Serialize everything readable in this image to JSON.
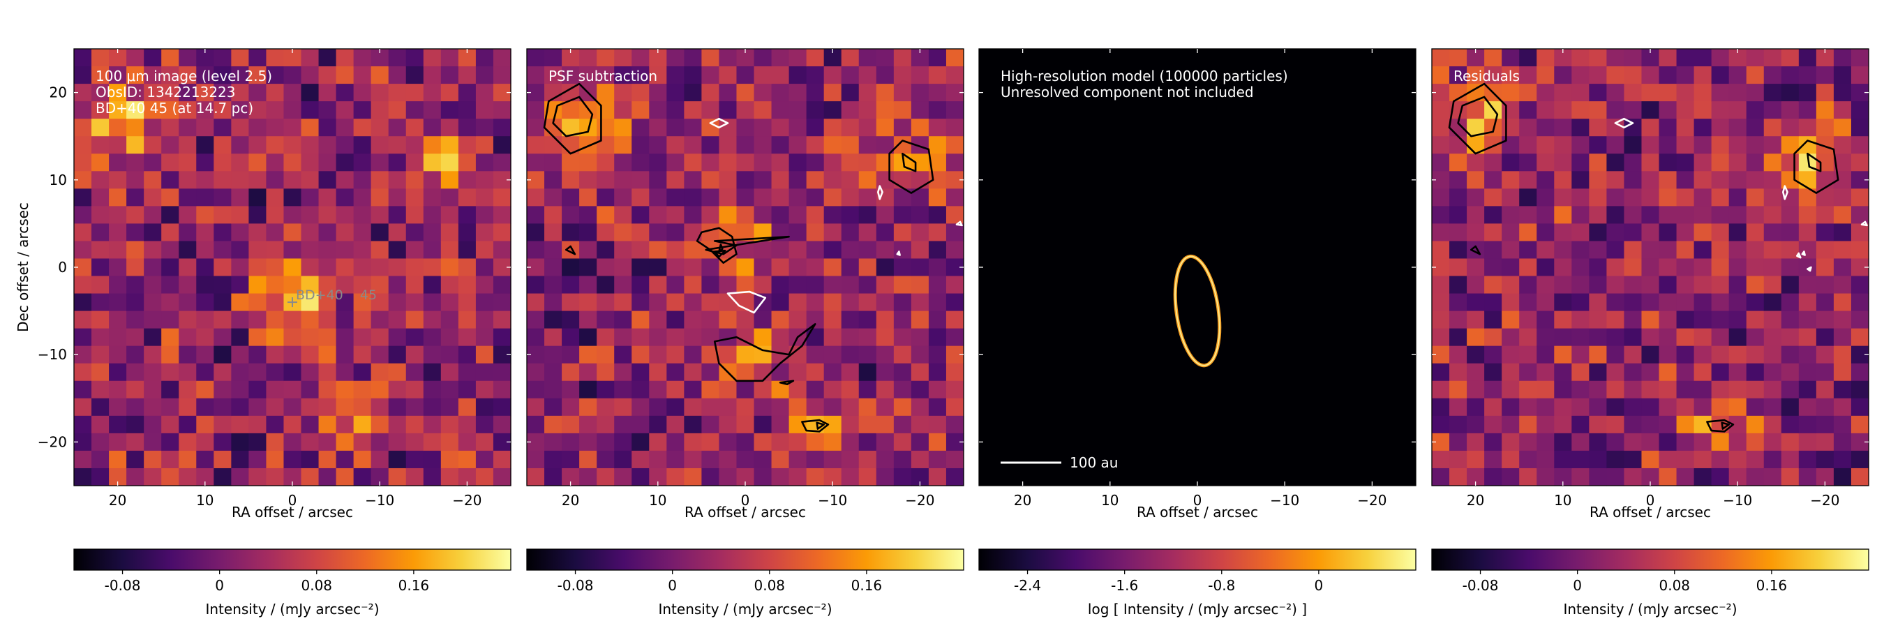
{
  "colors": {
    "colormap": [
      "#000004",
      "#1b0c41",
      "#4a0c6b",
      "#781c6d",
      "#a52c60",
      "#cf4446",
      "#ed6925",
      "#fb9b06",
      "#f7d13d",
      "#fcffa4"
    ],
    "positive_contour": "#000000",
    "negative_contour": "#ffffff",
    "annotation_text": "#ffffff",
    "marker": "#8a8a8a"
  },
  "chart_data": [
    {
      "type": "heatmap",
      "panel": "observation",
      "annotations": [
        "100 μm image (level 2.5)",
        "ObsID: 1342213223",
        "BD+40 45 (at 14.7 pc)"
      ],
      "marker_label": "BD+40    45",
      "marker_position": [
        0,
        -4
      ],
      "xlabel": "RA offset / arcsec",
      "ylabel": "Dec offset / arcsec",
      "xlim": [
        25,
        -25
      ],
      "ylim": [
        -25,
        25
      ],
      "xticks": [
        "20",
        "10",
        "0",
        "−10",
        "−20"
      ],
      "yticks": [
        "20",
        "10",
        "0",
        "−10",
        "−20"
      ],
      "grid": false,
      "pixel_size_arcsec": 2,
      "background_level": 0.02,
      "sources": [
        {
          "x": 0,
          "y": -3,
          "peak": 0.2
        },
        {
          "x": 19,
          "y": 17,
          "peak": 0.14
        },
        {
          "x": -18,
          "y": 12,
          "peak": 0.12
        },
        {
          "x": -7,
          "y": -17,
          "peak": 0.08
        }
      ],
      "colorbar": {
        "label": "Intensity / (mJy arcsec⁻²)",
        "ticks": [
          "-0.08",
          "0",
          "0.08",
          "0.16"
        ],
        "range": [
          -0.12,
          0.24
        ]
      }
    },
    {
      "type": "heatmap",
      "panel": "psf-subtraction",
      "annotations": [
        "PSF subtraction"
      ],
      "xlabel": "RA offset / arcsec",
      "xlim": [
        25,
        -25
      ],
      "ylim": [
        -25,
        25
      ],
      "xticks": [
        "20",
        "10",
        "0",
        "−10",
        "−20"
      ],
      "grid": false,
      "pixel_size_arcsec": 2,
      "background_level": 0.02,
      "sources": [
        {
          "x": 19,
          "y": 17,
          "peak": 0.15
        },
        {
          "x": -18,
          "y": 12,
          "peak": 0.12
        },
        {
          "x": 0,
          "y": 3,
          "peak": 0.09
        },
        {
          "x": 0,
          "y": -10,
          "peak": 0.09
        },
        {
          "x": -8,
          "y": -18,
          "peak": 0.09
        }
      ],
      "contours": [
        {
          "sign": "positive",
          "points": [
            [
              22.5,
              19
            ],
            [
              19,
              21
            ],
            [
              16.5,
              18.5
            ],
            [
              16.5,
              14.5
            ],
            [
              20,
              13
            ],
            [
              23,
              16
            ]
          ]
        },
        {
          "sign": "positive",
          "points": [
            [
              21.5,
              18.5
            ],
            [
              19,
              19.5
            ],
            [
              17.5,
              17.5
            ],
            [
              18,
              15.5
            ],
            [
              20.5,
              15
            ],
            [
              22,
              16.5
            ]
          ]
        },
        {
          "sign": "positive",
          "points": [
            [
              -16.5,
              13
            ],
            [
              -18,
              14.5
            ],
            [
              -21,
              13.5
            ],
            [
              -21.5,
              10
            ],
            [
              -19,
              8.5
            ],
            [
              -16.5,
              10
            ]
          ]
        },
        {
          "sign": "positive",
          "points": [
            [
              -18,
              13
            ],
            [
              -19.5,
              12
            ],
            [
              -19.5,
              11
            ],
            [
              -18.2,
              11.5
            ]
          ]
        },
        {
          "sign": "positive",
          "points": [
            [
              1.5,
              3.5
            ],
            [
              3,
              4.5
            ],
            [
              5,
              4
            ],
            [
              5.5,
              3
            ],
            [
              4,
              2
            ],
            [
              2.5,
              0.5
            ],
            [
              1,
              1.5
            ]
          ]
        },
        {
          "sign": "positive",
          "points": [
            [
              3.5,
              3
            ],
            [
              -5,
              3.5
            ],
            [
              4.5,
              2
            ],
            [
              2.5,
              1.5
            ],
            [
              1,
              2.5
            ]
          ]
        },
        {
          "sign": "positive",
          "points": [
            [
              3,
              1.8
            ],
            [
              2.8,
              2.6
            ],
            [
              2.6,
              2.1
            ]
          ]
        },
        {
          "sign": "positive",
          "points": [
            [
              3.5,
              1.8
            ],
            [
              3,
              1.2
            ],
            [
              2.3,
              1.9
            ]
          ]
        },
        {
          "sign": "positive",
          "points": [
            [
              3.5,
              -8.5
            ],
            [
              1,
              -8
            ],
            [
              -2,
              -9.5
            ],
            [
              -5,
              -10
            ],
            [
              -6,
              -8
            ],
            [
              -8,
              -6.5
            ],
            [
              -6.5,
              -9
            ],
            [
              -4,
              -11
            ],
            [
              -2,
              -13
            ],
            [
              1,
              -13
            ],
            [
              3,
              -11
            ]
          ]
        },
        {
          "sign": "positive",
          "points": [
            [
              -4,
              -13.2
            ],
            [
              -5.5,
              -13
            ],
            [
              -4.8,
              -13.4
            ]
          ]
        },
        {
          "sign": "positive",
          "points": [
            [
              -6.5,
              -17.7
            ],
            [
              -8.5,
              -17.5
            ],
            [
              -9.5,
              -18
            ],
            [
              -8.5,
              -18.8
            ],
            [
              -7,
              -18.7
            ]
          ]
        },
        {
          "sign": "positive",
          "points": [
            [
              -8.2,
              -17.8
            ],
            [
              -9,
              -18
            ],
            [
              -8.3,
              -18.5
            ]
          ]
        },
        {
          "sign": "positive",
          "points": [
            [
              20.5,
              2
            ],
            [
              19.5,
              1.5
            ],
            [
              20,
              2.4
            ]
          ]
        },
        {
          "sign": "negative",
          "points": [
            [
              4,
              16.5
            ],
            [
              3,
              16
            ],
            [
              2,
              16.5
            ],
            [
              3,
              17
            ]
          ]
        },
        {
          "sign": "negative",
          "points": [
            [
              2,
              -3
            ],
            [
              -0.5,
              -2.8
            ],
            [
              -2.3,
              -3.5
            ],
            [
              -1,
              -5.2
            ],
            [
              0.7,
              -4.4
            ]
          ]
        },
        {
          "sign": "negative",
          "points": [
            [
              -15.2,
              8.6
            ],
            [
              -15.4,
              9.3
            ],
            [
              -15.7,
              8.6
            ],
            [
              -15.4,
              7.8
            ]
          ]
        },
        {
          "sign": "negative",
          "points": [
            [
              -24.2,
              4.9
            ],
            [
              -24.6,
              5.2
            ],
            [
              -24.8,
              4.8
            ]
          ]
        },
        {
          "sign": "negative",
          "points": [
            [
              -17.4,
              1.5
            ],
            [
              -17.6,
              1.8
            ],
            [
              -17.7,
              1.4
            ]
          ]
        }
      ],
      "colorbar": {
        "label": "Intensity / (mJy arcsec⁻²)",
        "ticks": [
          "-0.08",
          "0",
          "0.08",
          "0.16"
        ],
        "range": [
          -0.12,
          0.24
        ]
      }
    },
    {
      "type": "heatmap",
      "panel": "model",
      "annotations": [
        "High-resolution model (100000 particles)",
        "Unresolved component not included"
      ],
      "xlabel": "RA offset / arcsec",
      "xlim": [
        25,
        -25
      ],
      "ylim": [
        -25,
        25
      ],
      "xticks": [
        "20",
        "10",
        "0",
        "−10",
        "−20"
      ],
      "grid": false,
      "ring": {
        "center": [
          0,
          -5
        ],
        "semi_axes": [
          2.4,
          6.3
        ],
        "tilt_deg": -8
      },
      "scale_bar_label": "100 au",
      "colorbar": {
        "label": "log [ Intensity / (mJy arcsec⁻²) ]",
        "ticks": [
          "-2.4",
          "-1.6",
          "-0.8",
          "0"
        ],
        "range": [
          -2.8,
          0.8
        ]
      }
    },
    {
      "type": "heatmap",
      "panel": "residuals",
      "annotations": [
        "Residuals"
      ],
      "xlabel": "RA offset / arcsec",
      "xlim": [
        25,
        -25
      ],
      "ylim": [
        -25,
        25
      ],
      "xticks": [
        "20",
        "10",
        "0",
        "−10",
        "−20"
      ],
      "grid": false,
      "pixel_size_arcsec": 2,
      "background_level": 0.02,
      "sources": [
        {
          "x": 19,
          "y": 17,
          "peak": 0.15
        },
        {
          "x": -18,
          "y": 12,
          "peak": 0.12
        },
        {
          "x": -8,
          "y": -18,
          "peak": 0.09
        }
      ],
      "contours": [
        {
          "sign": "positive",
          "points": [
            [
              22.5,
              19
            ],
            [
              19,
              21
            ],
            [
              16.5,
              18.5
            ],
            [
              16.5,
              14.5
            ],
            [
              20,
              13
            ],
            [
              23,
              16
            ]
          ]
        },
        {
          "sign": "positive",
          "points": [
            [
              21.5,
              18.5
            ],
            [
              19,
              19.5
            ],
            [
              17.5,
              17.5
            ],
            [
              18,
              15.5
            ],
            [
              20.5,
              15
            ],
            [
              22,
              16.5
            ]
          ]
        },
        {
          "sign": "positive",
          "points": [
            [
              -16.5,
              13
            ],
            [
              -18,
              14.5
            ],
            [
              -21,
              13.5
            ],
            [
              -21.5,
              10
            ],
            [
              -19,
              8.5
            ],
            [
              -16.5,
              10
            ]
          ]
        },
        {
          "sign": "positive",
          "points": [
            [
              -18,
              13
            ],
            [
              -19.5,
              12
            ],
            [
              -19.5,
              11
            ],
            [
              -18.2,
              11.5
            ]
          ]
        },
        {
          "sign": "positive",
          "points": [
            [
              -6.5,
              -17.7
            ],
            [
              -8.5,
              -17.5
            ],
            [
              -9.5,
              -18
            ],
            [
              -8.5,
              -18.8
            ],
            [
              -7,
              -18.7
            ]
          ]
        },
        {
          "sign": "positive",
          "points": [
            [
              -8.2,
              -17.8
            ],
            [
              -9,
              -18
            ],
            [
              -8.3,
              -18.5
            ]
          ]
        },
        {
          "sign": "positive",
          "points": [
            [
              20.5,
              2
            ],
            [
              19.5,
              1.5
            ],
            [
              20,
              2.4
            ]
          ]
        },
        {
          "sign": "negative",
          "points": [
            [
              4,
              16.5
            ],
            [
              3,
              16
            ],
            [
              2,
              16.5
            ],
            [
              3,
              17
            ]
          ]
        },
        {
          "sign": "negative",
          "points": [
            [
              -15.2,
              8.6
            ],
            [
              -15.4,
              9.3
            ],
            [
              -15.7,
              8.6
            ],
            [
              -15.4,
              7.8
            ]
          ]
        },
        {
          "sign": "negative",
          "points": [
            [
              -24.2,
              4.9
            ],
            [
              -24.6,
              5.2
            ],
            [
              -24.8,
              4.8
            ]
          ]
        },
        {
          "sign": "negative",
          "points": [
            [
              -17.4,
              1.5
            ],
            [
              -17.6,
              1.8
            ],
            [
              -17.7,
              1.4
            ]
          ]
        },
        {
          "sign": "negative",
          "points": [
            [
              -16.8,
              1.3
            ],
            [
              -17,
              1.6
            ],
            [
              -17.2,
              1.1
            ]
          ]
        },
        {
          "sign": "negative",
          "points": [
            [
              -18,
              -0.2
            ],
            [
              -18.4,
              0
            ],
            [
              -18.3,
              -0.4
            ]
          ]
        }
      ],
      "colorbar": {
        "label": "Intensity / (mJy arcsec⁻²)",
        "ticks": [
          "-0.08",
          "0",
          "0.08",
          "0.16"
        ],
        "range": [
          -0.12,
          0.24
        ]
      }
    }
  ]
}
